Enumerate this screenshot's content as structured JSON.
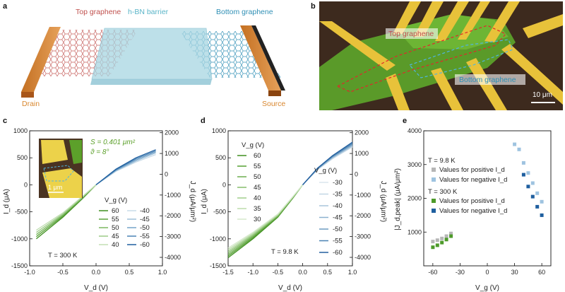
{
  "panels": {
    "a": {
      "letter": "a",
      "top_label": "Top graphene",
      "middle_label": "h-BN barrier",
      "bottom_label": "Bottom graphene",
      "left_label": "Drain",
      "right_label": "Source",
      "colors": {
        "top": "#c0504d",
        "middle": "#5ab5c8",
        "bottom": "#2f8fb5",
        "electrode": "#d9872f"
      }
    },
    "b": {
      "letter": "b",
      "top_label": "Top graphene",
      "bottom_label": "Bottom graphene",
      "scale_bar": "10 μm"
    },
    "c": {
      "letter": "c",
      "xlabel": "V_d (V)",
      "ylabel_left": "I_d (μA)",
      "ylabel_right": "J_d (μA/μm²)",
      "area_text": "S = 0.401 μm²",
      "angle_text": "ϑ = 8°",
      "inset_scale": "1 μm",
      "temperature": "T = 300 K",
      "legend_title": "V_g (V)",
      "legend_pos": [
        "60",
        "55",
        "50",
        "45",
        "40"
      ],
      "legend_neg": [
        "-40",
        "-45",
        "-50",
        "-55",
        "-60"
      ],
      "xticks": [
        "-1.0",
        "-0.5",
        "0.0",
        "0.5",
        "1.0"
      ],
      "yticks_left": [
        "1000",
        "500",
        "0",
        "-500",
        "-1000",
        "-1500"
      ],
      "yticks_right": [
        "2000",
        "1000",
        "0",
        "-1000",
        "-2000",
        "-3000",
        "-4000"
      ]
    },
    "d": {
      "letter": "d",
      "xlabel": "V_d (V)",
      "ylabel_left": "I_d (μA)",
      "ylabel_right": "J_d (μA/μm²)",
      "temperature": "T = 9.8 K",
      "legend_title_left": "V_g (V)",
      "legend_title_right": "V_g (V)",
      "legend_pos": [
        "60",
        "55",
        "50",
        "45",
        "40",
        "35",
        "30"
      ],
      "legend_neg": [
        "-30",
        "-35",
        "-40",
        "-45",
        "-50",
        "-55",
        "-60"
      ],
      "xticks": [
        "-1.5",
        "-1.0",
        "-0.5",
        "0.0",
        "0.5",
        "1.0"
      ],
      "yticks_left": [
        "1000",
        "500",
        "0",
        "-500",
        "-1000",
        "-1500"
      ],
      "yticks_right": [
        "2000",
        "1000",
        "0",
        "-1000",
        "-2000",
        "-3000",
        "-4000"
      ]
    },
    "e": {
      "letter": "e",
      "xlabel": "V_g (V)",
      "ylabel": "|J_d,peak| (μA/μm²)",
      "xticks": [
        "-60",
        "-30",
        "0",
        "30",
        "60"
      ],
      "yticks": [
        "4000",
        "3000",
        "2000",
        "1000"
      ],
      "legend": {
        "t1": "T = 9.8 K",
        "t1_pos": "Values for positive I_d",
        "t1_neg": "Values for negative I_d",
        "t2": "T = 300 K",
        "t2_pos": "Values for positive I_d",
        "t2_neg": "Values for negative I_d"
      }
    }
  },
  "chart_data": [
    {
      "type": "line",
      "panel": "c",
      "xlabel": "V_d (V)",
      "ylabel": "I_d (μA)",
      "xlim": [
        -1.0,
        1.0
      ],
      "ylim": [
        -1500,
        1000
      ],
      "series": [
        {
          "name": "60",
          "color": "#3f8f1f",
          "x": [
            -0.9,
            -0.5,
            -0.2,
            0.0
          ],
          "y": [
            -1000,
            -600,
            -250,
            0
          ]
        },
        {
          "name": "55",
          "color": "#5ba33a",
          "x": [
            -0.9,
            -0.5,
            -0.2,
            0.0
          ],
          "y": [
            -960,
            -580,
            -240,
            0
          ]
        },
        {
          "name": "50",
          "color": "#7ab85f",
          "x": [
            -0.9,
            -0.5,
            -0.2,
            0.0
          ],
          "y": [
            -920,
            -560,
            -230,
            0
          ]
        },
        {
          "name": "45",
          "color": "#9ccb87",
          "x": [
            -0.9,
            -0.5,
            -0.2,
            0.0
          ],
          "y": [
            -880,
            -540,
            -220,
            0
          ]
        },
        {
          "name": "40",
          "color": "#c2dfb4",
          "x": [
            -0.9,
            -0.5,
            -0.2,
            0.0
          ],
          "y": [
            -840,
            -520,
            -210,
            0
          ]
        },
        {
          "name": "-40",
          "color": "#c9dbe8",
          "x": [
            0.0,
            0.3,
            0.6,
            0.9
          ],
          "y": [
            0,
            250,
            420,
            560
          ]
        },
        {
          "name": "-45",
          "color": "#9fc0d9",
          "x": [
            0.0,
            0.3,
            0.6,
            0.9
          ],
          "y": [
            0,
            260,
            440,
            590
          ]
        },
        {
          "name": "-50",
          "color": "#74a3c8",
          "x": [
            0.0,
            0.3,
            0.6,
            0.9
          ],
          "y": [
            0,
            270,
            460,
            610
          ]
        },
        {
          "name": "-55",
          "color": "#4a83b5",
          "x": [
            0.0,
            0.3,
            0.6,
            0.9
          ],
          "y": [
            0,
            280,
            480,
            630
          ]
        },
        {
          "name": "-60",
          "color": "#1f5f9f",
          "x": [
            0.0,
            0.3,
            0.6,
            0.9
          ],
          "y": [
            0,
            290,
            500,
            650
          ]
        }
      ]
    },
    {
      "type": "line",
      "panel": "d",
      "xlabel": "V_d (V)",
      "ylabel": "I_d (μA)",
      "xlim": [
        -1.5,
        1.0
      ],
      "ylim": [
        -1500,
        1000
      ],
      "series": [
        {
          "name": "60",
          "color": "#3f8f1f",
          "x": [
            -1.5,
            -1.0,
            -0.5,
            -0.2,
            0.0
          ],
          "y": [
            -1350,
            -1000,
            -600,
            -250,
            0
          ]
        },
        {
          "name": "55",
          "color": "#55a033",
          "x": [
            -1.5,
            -1.0,
            -0.5,
            -0.2,
            0.0
          ],
          "y": [
            -1320,
            -980,
            -590,
            -245,
            0
          ]
        },
        {
          "name": "50",
          "color": "#6cad4d",
          "x": [
            -1.5,
            -1.0,
            -0.5,
            -0.2,
            0.0
          ],
          "y": [
            -1290,
            -960,
            -580,
            -240,
            0
          ]
        },
        {
          "name": "45",
          "color": "#85bd6b",
          "x": [
            -1.5,
            -1.0,
            -0.5,
            -0.2,
            0.0
          ],
          "y": [
            -1260,
            -940,
            -570,
            -235,
            0
          ]
        },
        {
          "name": "40",
          "color": "#a0cd8a",
          "x": [
            -1.5,
            -1.0,
            -0.5,
            -0.2,
            0.0
          ],
          "y": [
            -1230,
            -920,
            -560,
            -230,
            0
          ]
        },
        {
          "name": "35",
          "color": "#bcdcab",
          "x": [
            -1.5,
            -1.0,
            -0.5,
            -0.2,
            0.0
          ],
          "y": [
            -1200,
            -900,
            -550,
            -225,
            0
          ]
        },
        {
          "name": "30",
          "color": "#d5e9cb",
          "x": [
            -1.5,
            -1.0,
            -0.5,
            -0.2,
            0.0
          ],
          "y": [
            -1170,
            -880,
            -540,
            -220,
            0
          ]
        },
        {
          "name": "-30",
          "color": "#dbe6ee",
          "x": [
            0.0,
            0.3,
            0.6,
            1.0
          ],
          "y": [
            0,
            280,
            480,
            700
          ]
        },
        {
          "name": "-35",
          "color": "#c2d6e5",
          "x": [
            0.0,
            0.3,
            0.6,
            1.0
          ],
          "y": [
            0,
            285,
            490,
            710
          ]
        },
        {
          "name": "-40",
          "color": "#a8c5db",
          "x": [
            0.0,
            0.3,
            0.6,
            1.0
          ],
          "y": [
            0,
            290,
            500,
            720
          ]
        },
        {
          "name": "-45",
          "color": "#8cb1cf",
          "x": [
            0.0,
            0.3,
            0.6,
            1.0
          ],
          "y": [
            0,
            295,
            510,
            735
          ]
        },
        {
          "name": "-50",
          "color": "#6c9bc1",
          "x": [
            0.0,
            0.3,
            0.6,
            1.0
          ],
          "y": [
            0,
            300,
            520,
            750
          ]
        },
        {
          "name": "-55",
          "color": "#4a82b3",
          "x": [
            0.0,
            0.3,
            0.6,
            1.0
          ],
          "y": [
            0,
            305,
            530,
            770
          ]
        },
        {
          "name": "-60",
          "color": "#235f9f",
          "x": [
            0.0,
            0.3,
            0.6,
            1.0
          ],
          "y": [
            0,
            310,
            540,
            790
          ]
        }
      ]
    },
    {
      "type": "scatter",
      "panel": "e",
      "xlabel": "V_g (V)",
      "ylabel": "|J_d,peak| (μA/μm²)",
      "xlim": [
        -70,
        70
      ],
      "ylim": [
        0,
        4000
      ],
      "series": [
        {
          "name": "T = 9.8 K, positive I_d",
          "color": "#b6b6b6",
          "x": [
            -60,
            -55,
            -50,
            -45,
            -40
          ],
          "y": [
            720,
            760,
            810,
            880,
            960
          ]
        },
        {
          "name": "T = 9.8 K, negative I_d",
          "color": "#9ec3e0",
          "x": [
            30,
            35,
            40,
            45,
            50,
            55,
            60
          ],
          "y": [
            3600,
            3450,
            3050,
            2750,
            2450,
            2150,
            1900
          ]
        },
        {
          "name": "T = 300 K, positive I_d",
          "color": "#4d9a2a",
          "x": [
            -60,
            -55,
            -50,
            -45,
            -40
          ],
          "y": [
            550,
            610,
            690,
            780,
            880
          ]
        },
        {
          "name": "T = 300 K, negative I_d",
          "color": "#1f5f9f",
          "x": [
            40,
            45,
            50,
            55,
            60
          ],
          "y": [
            2700,
            2350,
            2050,
            1750,
            1500
          ]
        }
      ]
    }
  ]
}
